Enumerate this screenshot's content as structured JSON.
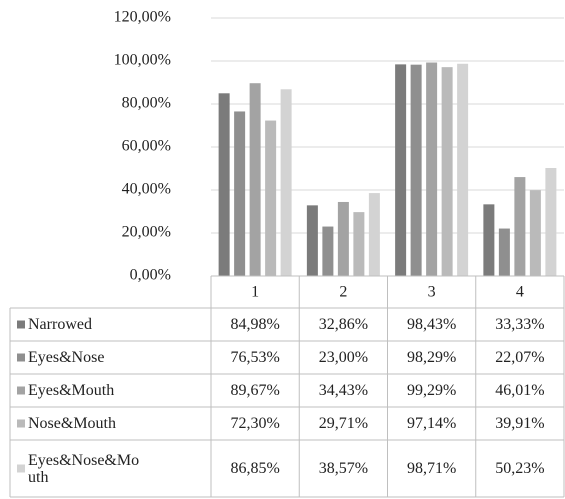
{
  "chart_data": {
    "type": "bar",
    "categories": [
      "1",
      "2",
      "3",
      "4"
    ],
    "series": [
      {
        "name": "Narrowed",
        "color": "#7b7b7b",
        "values": [
          84.98,
          32.86,
          98.43,
          33.33
        ],
        "value_labels": [
          "84,98%",
          "32,86%",
          "98,43%",
          "33,33%"
        ]
      },
      {
        "name": "Eyes&Nose",
        "color": "#8f8f8f",
        "values": [
          76.53,
          23.0,
          98.29,
          22.07
        ],
        "value_labels": [
          "76,53%",
          "23,00%",
          "98,29%",
          "22,07%"
        ]
      },
      {
        "name": "Eyes&Mouth",
        "color": "#a3a3a3",
        "values": [
          89.67,
          34.43,
          99.29,
          46.01
        ],
        "value_labels": [
          "89,67%",
          "34,43%",
          "99,29%",
          "46,01%"
        ]
      },
      {
        "name": "Nose&Mouth",
        "color": "#bababa",
        "values": [
          72.3,
          29.71,
          97.14,
          39.91
        ],
        "value_labels": [
          "72,30%",
          "29,71%",
          "97,14%",
          "39,91%"
        ]
      },
      {
        "name": "Eyes&Nose&Mouth",
        "color": "#d3d3d3",
        "values": [
          86.85,
          38.57,
          98.71,
          50.23
        ],
        "value_labels": [
          "86,85%",
          "38,57%",
          "98,71%",
          "50,23%"
        ]
      }
    ],
    "ylim": [
      0,
      120
    ],
    "yticks": [
      {
        "value": 0,
        "label": "0,00%"
      },
      {
        "value": 20,
        "label": "20,00%"
      },
      {
        "value": 40,
        "label": "40,00%"
      },
      {
        "value": 60,
        "label": "60,00%"
      },
      {
        "value": 80,
        "label": "80,00%"
      },
      {
        "value": 100,
        "label": "100,00%"
      },
      {
        "value": 120,
        "label": "120,00%"
      }
    ],
    "grid": true
  }
}
